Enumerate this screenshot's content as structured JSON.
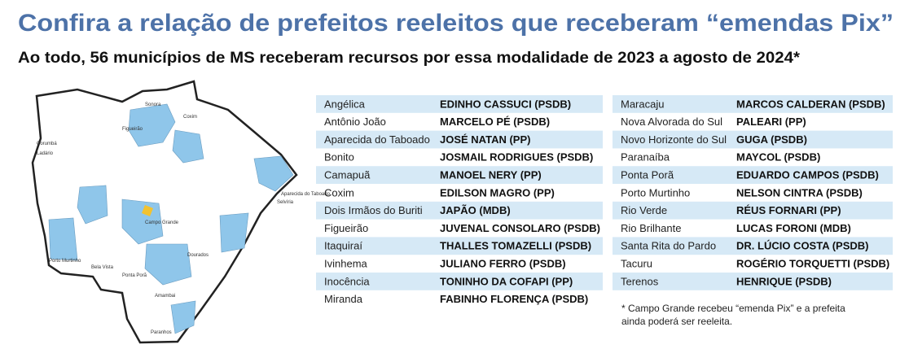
{
  "header": {
    "title": "Confira a relação de prefeitos reeleitos que receberam “emendas Pix”",
    "subtitle": "Ao todo, 56 municípios de MS receberam recursos por essa modalidade de 2023 a agosto de 2024*"
  },
  "map": {
    "labels": [
      "Sonora",
      "Coxim",
      "Figueirão",
      "Corumbá",
      "Ladário",
      "Campo Grande",
      "Selvíria",
      "Aparecida do Taboado",
      "Porto Murtinho",
      "Bela Vista",
      "Ponta Porã",
      "Amambai",
      "Dourados",
      "Paranhos"
    ]
  },
  "tables": [
    {
      "rows": [
        [
          "Angélica",
          "EDINHO CASSUCI (PSDB)"
        ],
        [
          "Antônio João",
          "MARCELO PÉ (PSDB)"
        ],
        [
          "Aparecida do Taboado",
          "JOSÉ NATAN (PP)"
        ],
        [
          "Bonito",
          "JOSMAIL RODRIGUES (PSDB)"
        ],
        [
          "Camapuã",
          "MANOEL NERY (PP)"
        ],
        [
          "Coxim",
          "EDILSON MAGRO (PP)"
        ],
        [
          "Dois Irmãos do Buriti",
          "JAPÃO (MDB)"
        ],
        [
          "Figueirão",
          "JUVENAL CONSOLARO (PSDB)"
        ],
        [
          "Itaquiraí",
          "THALLES TOMAZELLI (PSDB)"
        ],
        [
          "Ivinhema",
          "JULIANO FERRO (PSDB)"
        ],
        [
          "Inocência",
          "TONINHO DA COFAPI (PP)"
        ],
        [
          "Miranda",
          "FABINHO FLORENÇA (PSDB)"
        ]
      ]
    },
    {
      "rows": [
        [
          "Maracaju",
          "MARCOS CALDERAN (PSDB)"
        ],
        [
          "Nova Alvorada do Sul",
          "PALEARI (PP)"
        ],
        [
          "Novo Horizonte do Sul",
          "GUGA (PSDB)"
        ],
        [
          "Paranaíba",
          "MAYCOL (PSDB)"
        ],
        [
          "Ponta Porã",
          "EDUARDO CAMPOS (PSDB)"
        ],
        [
          "Porto Murtinho",
          "NELSON CINTRA (PSDB)"
        ],
        [
          "Rio Verde",
          "RÉUS FORNARI (PP)"
        ],
        [
          "Rio Brilhante",
          "LUCAS FORONI (MDB)"
        ],
        [
          "Santa Rita do Pardo",
          "DR. LÚCIO COSTA (PSDB)"
        ],
        [
          "Tacuru",
          "ROGÉRIO TORQUETTI (PSDB)"
        ],
        [
          "Terenos",
          "HENRIQUE (PSDB)"
        ]
      ]
    }
  ],
  "footnote": [
    "* Campo Grande recebeu “emenda Pix” e a prefeita",
    "ainda poderá ser reeleita."
  ]
}
